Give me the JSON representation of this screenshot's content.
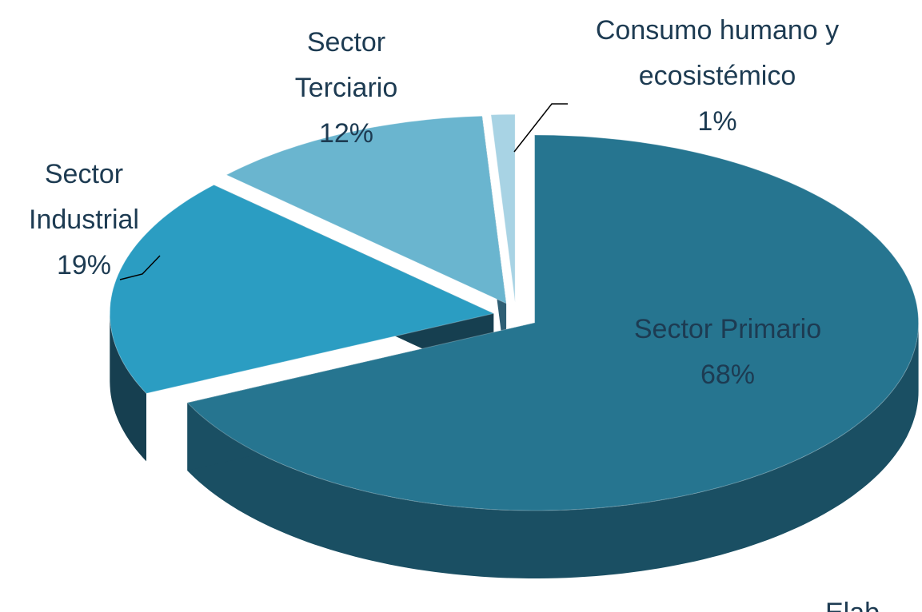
{
  "chart_data": {
    "type": "pie3d",
    "categories": [
      "Sector Primario",
      "Sector Industrial",
      "Sector Terciario",
      "Consumo humano y ecosistémico"
    ],
    "values": [
      68,
      19,
      12,
      1
    ],
    "value_labels": [
      "68%",
      "19%",
      "12%",
      "1%"
    ],
    "colors": [
      "#267590",
      "#2b9dc2",
      "#6ab5cf",
      "#a8d3e4"
    ],
    "side_colors": [
      "#1a4f63",
      "#163f50",
      "#2f5f74",
      "#5f8fa3"
    ],
    "source": "Elab"
  }
}
